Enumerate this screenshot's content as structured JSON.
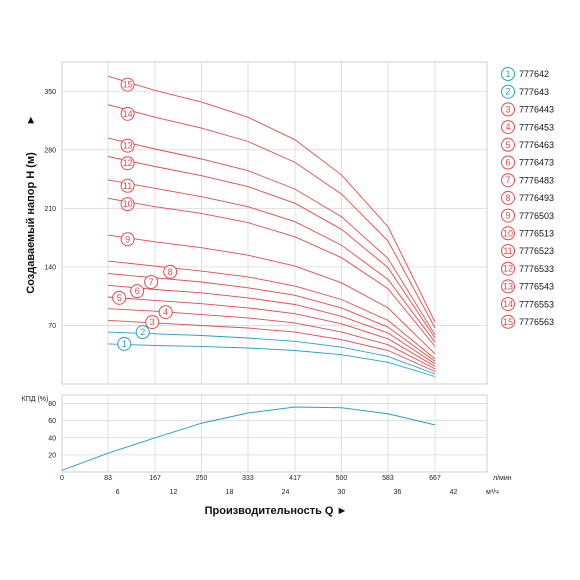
{
  "colors": {
    "red": "#e24b4f",
    "blue": "#2a9fc4",
    "grid": "#d9d9d9",
    "panel_border": "#cfcfcf"
  },
  "chart_data": {
    "type": "line",
    "head_chart": {
      "ylabel": "Создаваемый напор Н (м)",
      "y_ticks": [
        "70",
        "140",
        "210",
        "280",
        "350"
      ],
      "ylim": [
        0,
        385
      ],
      "x_flow_lpm": [
        83,
        167,
        250,
        333,
        417,
        500,
        583,
        667
      ],
      "series": [
        {
          "marker": "1",
          "name": "777642",
          "color": "blue",
          "x": [
            83,
            167,
            250,
            333,
            417,
            500,
            583,
            667
          ],
          "values": [
            48,
            46,
            45,
            43,
            40,
            35,
            26,
            9
          ],
          "marker_x": 112,
          "marker_y": 48
        },
        {
          "marker": "2",
          "name": "777643",
          "color": "blue",
          "x": [
            83,
            167,
            250,
            333,
            417,
            500,
            583,
            667
          ],
          "values": [
            62,
            60,
            58,
            55,
            51,
            44,
            33,
            12
          ],
          "marker_x": 145,
          "marker_y": 62
        },
        {
          "marker": "3",
          "name": "7776443",
          "color": "red",
          "x": [
            83,
            167,
            250,
            333,
            417,
            500,
            583,
            667
          ],
          "values": [
            76,
            73,
            70,
            67,
            62,
            53,
            40,
            15
          ],
          "marker_x": 162,
          "marker_y": 74
        },
        {
          "marker": "4",
          "name": "7776453",
          "color": "red",
          "x": [
            83,
            167,
            250,
            333,
            417,
            500,
            583,
            667
          ],
          "values": [
            90,
            87,
            83,
            79,
            73,
            62,
            47,
            18
          ],
          "marker_x": 186,
          "marker_y": 86
        },
        {
          "marker": "5",
          "name": "7776463",
          "color": "red",
          "x": [
            83,
            167,
            250,
            333,
            417,
            500,
            583,
            667
          ],
          "values": [
            104,
            100,
            96,
            91,
            84,
            72,
            54,
            21
          ],
          "marker_x": 103,
          "marker_y": 103
        },
        {
          "marker": "6",
          "name": "7776473",
          "color": "red",
          "x": [
            83,
            167,
            250,
            333,
            417,
            500,
            583,
            667
          ],
          "values": [
            118,
            113,
            109,
            103,
            95,
            81,
            61,
            24
          ],
          "marker_x": 135,
          "marker_y": 111
        },
        {
          "marker": "7",
          "name": "7776483",
          "color": "red",
          "x": [
            83,
            167,
            250,
            333,
            417,
            500,
            583,
            667
          ],
          "values": [
            132,
            127,
            122,
            115,
            106,
            91,
            68,
            27
          ],
          "marker_x": 160,
          "marker_y": 122
        },
        {
          "marker": "8",
          "name": "7776493",
          "color": "red",
          "x": [
            83,
            167,
            250,
            333,
            417,
            500,
            583,
            667
          ],
          "values": [
            147,
            141,
            135,
            128,
            117,
            101,
            76,
            30
          ],
          "marker_x": 194,
          "marker_y": 134
        },
        {
          "marker": "9",
          "name": "7776503",
          "color": "red",
          "x": [
            83,
            167,
            250,
            333,
            417,
            500,
            583,
            667
          ],
          "values": [
            178,
            170,
            163,
            154,
            141,
            121,
            91,
            36
          ],
          "marker_x": 118,
          "marker_y": 173
        },
        {
          "marker": "10",
          "name": "7776513",
          "color": "red",
          "x": [
            83,
            167,
            250,
            333,
            417,
            500,
            583,
            667
          ],
          "values": [
            222,
            212,
            204,
            193,
            176,
            151,
            114,
            45
          ],
          "marker_x": 118,
          "marker_y": 215
        },
        {
          "marker": "11",
          "name": "7776523",
          "color": "red",
          "x": [
            83,
            167,
            250,
            333,
            417,
            500,
            583,
            667
          ],
          "values": [
            244,
            234,
            224,
            212,
            194,
            166,
            125,
            50
          ],
          "marker_x": 118,
          "marker_y": 237
        },
        {
          "marker": "12",
          "name": "7776533",
          "color": "red",
          "x": [
            83,
            167,
            250,
            333,
            417,
            500,
            583,
            667
          ],
          "values": [
            272,
            260,
            249,
            236,
            216,
            185,
            139,
            55
          ],
          "marker_x": 118,
          "marker_y": 264
        },
        {
          "marker": "13",
          "name": "7776543",
          "color": "red",
          "x": [
            83,
            167,
            250,
            333,
            417,
            500,
            583,
            667
          ],
          "values": [
            294,
            281,
            269,
            255,
            233,
            200,
            150,
            59
          ],
          "marker_x": 118,
          "marker_y": 285
        },
        {
          "marker": "14",
          "name": "7776553",
          "color": "red",
          "x": [
            83,
            167,
            250,
            333,
            417,
            500,
            583,
            667
          ],
          "values": [
            334,
            319,
            306,
            290,
            265,
            227,
            171,
            67
          ],
          "marker_x": 118,
          "marker_y": 323
        },
        {
          "marker": "15",
          "name": "7776563",
          "color": "red",
          "x": [
            83,
            167,
            250,
            333,
            417,
            500,
            583,
            667
          ],
          "values": [
            368,
            351,
            337,
            319,
            292,
            250,
            188,
            74
          ],
          "marker_x": 118,
          "marker_y": 358
        }
      ]
    },
    "efficiency_chart": {
      "ylabel": "КПД (%)",
      "y_ticks": [
        "20",
        "40",
        "60",
        "80"
      ],
      "ylim": [
        0,
        90
      ],
      "x": [
        0,
        83,
        167,
        250,
        333,
        417,
        500,
        583,
        667
      ],
      "values": [
        2,
        22,
        40,
        57,
        69,
        76,
        75,
        68,
        55
      ]
    },
    "x_axis": {
      "flow_ticks": [
        "0",
        "83",
        "167",
        "250",
        "333",
        "417",
        "500",
        "583",
        "667"
      ],
      "flow_unit": "л/мин",
      "m3h_ticks": [
        "6",
        "12",
        "18",
        "24",
        "30",
        "36",
        "42"
      ],
      "m3h_unit": "м³/ч",
      "xlabel": "Производительность Q ►"
    },
    "grid": true,
    "legend_position": "right"
  }
}
